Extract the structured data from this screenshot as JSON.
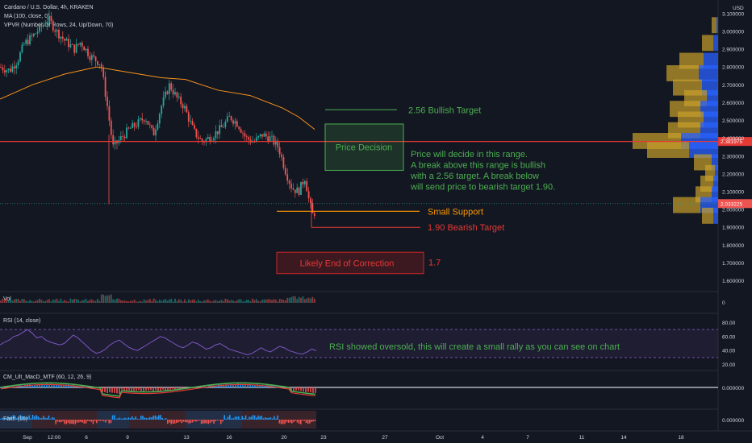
{
  "header": {
    "symbol": "Cardano / U.S. Dollar, 4h, KRAKEN",
    "ma": "MA (100, close, 0)",
    "vpvr": "VPVR (Number Of Rows, 24, Up/Down, 70)",
    "currency": "USD"
  },
  "colors": {
    "bg": "#131722",
    "up": "#26a69a",
    "down": "#ef5350",
    "ma": "#f7931a",
    "red_line": "#e53935",
    "green_text": "#4caf50",
    "orange_text": "#ff9800",
    "rsi": "#7e57c2",
    "vp_up": "#2962ff",
    "vp_down": "#c8a02b"
  },
  "chart_data": [
    {
      "type": "candlestick",
      "title": "Cardano / U.S. Dollar, 4h, KRAKEN",
      "y_ticks": [
        "3.100000",
        "3.000000",
        "2.900000",
        "2.800000",
        "2.700000",
        "2.600000",
        "2.500000",
        "2.400000",
        "2.300000",
        "2.200000",
        "2.100000",
        "2.000000",
        "1.900000",
        "1.800000",
        "1.700000",
        "1.600000"
      ],
      "ylim": [
        1.58,
        3.14
      ],
      "x_ticks": [
        "Sep",
        "12:00",
        "6",
        "9",
        "13",
        "16",
        "20",
        "23",
        "27",
        "Oct",
        "4",
        "7",
        "11",
        "14",
        "18"
      ],
      "price_path": [
        [
          0,
          2.8
        ],
        [
          12,
          2.78
        ],
        [
          22,
          2.84
        ],
        [
          30,
          2.93
        ],
        [
          40,
          2.97
        ],
        [
          50,
          3.02
        ],
        [
          60,
          3.07
        ],
        [
          70,
          3.0
        ],
        [
          80,
          2.95
        ],
        [
          92,
          2.9
        ],
        [
          100,
          2.94
        ],
        [
          112,
          2.86
        ],
        [
          125,
          2.82
        ],
        [
          133,
          2.58
        ],
        [
          140,
          2.35
        ],
        [
          150,
          2.4
        ],
        [
          160,
          2.45
        ],
        [
          170,
          2.48
        ],
        [
          180,
          2.52
        ],
        [
          190,
          2.42
        ],
        [
          200,
          2.58
        ],
        [
          210,
          2.7
        ],
        [
          220,
          2.62
        ],
        [
          228,
          2.58
        ],
        [
          240,
          2.44
        ],
        [
          250,
          2.38
        ],
        [
          262,
          2.41
        ],
        [
          275,
          2.46
        ],
        [
          285,
          2.52
        ],
        [
          295,
          2.48
        ],
        [
          305,
          2.4
        ],
        [
          315,
          2.38
        ],
        [
          325,
          2.42
        ],
        [
          335,
          2.4
        ],
        [
          345,
          2.35
        ],
        [
          355,
          2.2
        ],
        [
          362,
          2.12
        ],
        [
          370,
          2.1
        ],
        [
          378,
          2.18
        ],
        [
          383,
          2.05
        ],
        [
          388,
          1.96
        ],
        [
          392,
          2.01
        ]
      ],
      "series": [
        {
          "name": "MA (100, close, 0)",
          "points": [
            [
              0,
              2.62
            ],
            [
              40,
              2.7
            ],
            [
              80,
              2.76
            ],
            [
              120,
              2.8
            ],
            [
              160,
              2.77
            ],
            [
              200,
              2.74
            ],
            [
              230,
              2.73
            ],
            [
              270,
              2.67
            ],
            [
              310,
              2.64
            ],
            [
              350,
              2.57
            ],
            [
              370,
              2.52
            ],
            [
              390,
              2.45
            ]
          ]
        }
      ],
      "levels": [
        {
          "name": "bullish_target",
          "value": 2.56,
          "label": "2.56 Bullish Target"
        },
        {
          "name": "price_decision",
          "value": 2.381975,
          "label": "2.381975"
        },
        {
          "name": "last_price",
          "value": 2.033225,
          "label": "2.033225"
        },
        {
          "name": "small_support",
          "value": 1.99,
          "label": "Small Support"
        },
        {
          "name": "bearish_target",
          "value": 1.9,
          "label": "1.90 Bearish Target"
        }
      ],
      "boxes": [
        {
          "name": "price-decision",
          "label": "Price Decision",
          "top": 2.48,
          "bottom": 2.22
        },
        {
          "name": "likely-end",
          "label": "Likely End of Correction",
          "top": 1.76,
          "bottom": 1.64,
          "side_label": "1.7"
        }
      ],
      "annotation": "Price will decide in this range.\nA break above this range is bullish\nwith a 2.56 target. A break below\nwill send price to bearish target 1.90."
    },
    {
      "type": "bar",
      "title": "Vol",
      "y_ticks": [
        "0"
      ]
    },
    {
      "type": "line",
      "title": "RSI (14, close)",
      "y_ticks": [
        "80.00",
        "60.00",
        "40.00",
        "20.00"
      ],
      "ylim": [
        15,
        85
      ],
      "values": [
        48,
        52,
        55,
        60,
        62,
        66,
        70,
        65,
        58,
        60,
        55,
        52,
        50,
        48,
        50,
        56,
        62,
        58,
        52,
        46,
        40,
        36,
        38,
        42,
        48,
        52,
        55,
        50,
        45,
        42,
        40,
        44,
        48,
        52,
        56,
        60,
        58,
        54,
        50,
        46,
        44,
        48,
        52,
        50,
        46,
        42,
        44,
        48,
        50,
        46,
        42,
        40,
        38,
        36,
        34,
        36,
        40,
        44,
        40,
        38,
        42,
        46,
        44,
        40,
        38,
        36,
        35,
        38,
        42,
        40
      ],
      "bands": [
        70,
        30
      ],
      "annotation": "RSI showed oversold, this will create a small rally as you can see on chart"
    },
    {
      "type": "line",
      "title": "CM_Ult_MacD_MTF (60, 12, 26, 9)",
      "y_ticks": [
        "0.000000"
      ]
    },
    {
      "type": "bar",
      "title": "Faith (10)",
      "y_ticks": [
        "0.000000"
      ]
    }
  ]
}
